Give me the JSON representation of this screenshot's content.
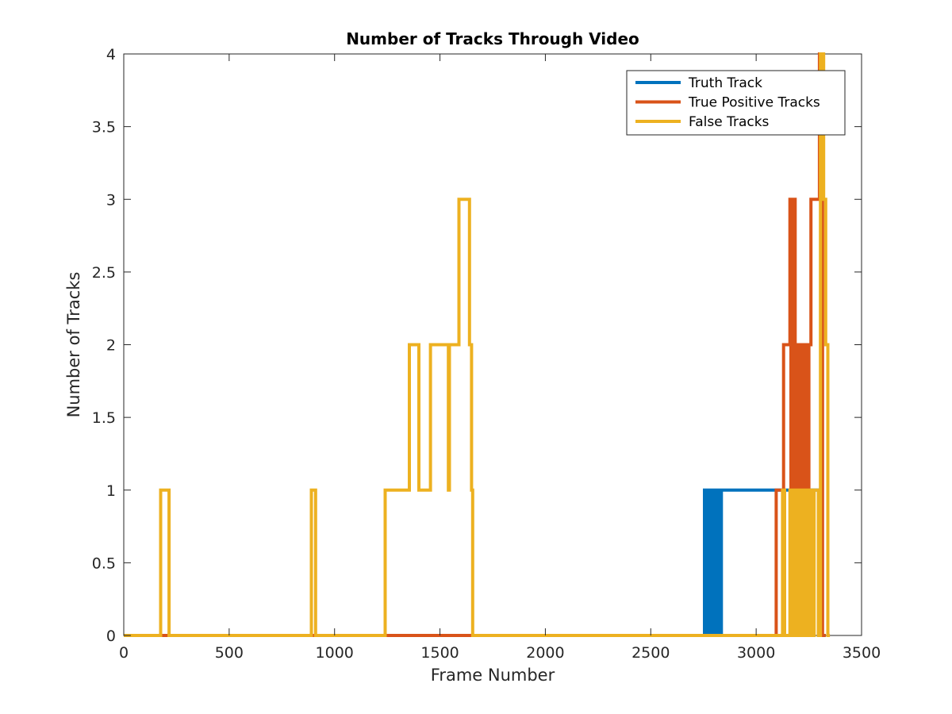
{
  "chart_data": {
    "type": "line",
    "title": "Number of Tracks Through Video",
    "xlabel": "Frame Number",
    "ylabel": "Number of Tracks",
    "xlim": [
      0,
      3500
    ],
    "ylim": [
      0,
      4
    ],
    "xticks": [
      0,
      500,
      1000,
      1500,
      2000,
      2500,
      3000,
      3500
    ],
    "xtick_labels": [
      "0",
      "500",
      "1000",
      "1500",
      "2000",
      "2500",
      "3000",
      "3500"
    ],
    "yticks": [
      0,
      0.5,
      1,
      1.5,
      2,
      2.5,
      3,
      3.5,
      4
    ],
    "ytick_labels": [
      "0",
      "0.5",
      "1",
      "1.5",
      "2",
      "2.5",
      "3",
      "3.5",
      "4"
    ],
    "grid": false,
    "legend_position": "top-right",
    "series": [
      {
        "name": "Truth Track",
        "color": "#0072BD",
        "x": [
          0,
          2755,
          2755,
          2760,
          2760,
          2765,
          2765,
          2770,
          2770,
          2775,
          2775,
          2780,
          2780,
          2785,
          2785,
          2790,
          2790,
          2795,
          2795,
          2800,
          2800,
          2805,
          2805,
          2810,
          2810,
          2815,
          2815,
          2820,
          2820,
          2825,
          2825,
          2830,
          2830,
          2835,
          2835,
          2840,
          2840,
          3300,
          3300,
          3330
        ],
        "y": [
          0,
          0,
          1,
          1,
          0,
          0,
          1,
          1,
          0,
          0,
          1,
          1,
          0,
          0,
          1,
          1,
          0,
          0,
          1,
          1,
          0,
          0,
          1,
          1,
          0,
          0,
          1,
          1,
          0,
          0,
          1,
          1,
          0,
          0,
          1,
          1,
          1,
          1,
          0,
          0
        ]
      },
      {
        "name": "True Positive Tracks",
        "color": "#D95319",
        "x": [
          0,
          3095,
          3095,
          3130,
          3130,
          3160,
          3160,
          3165,
          3165,
          3170,
          3170,
          3175,
          3175,
          3180,
          3180,
          3185,
          3185,
          3190,
          3190,
          3200,
          3200,
          3215,
          3215,
          3220,
          3220,
          3225,
          3225,
          3230,
          3230,
          3235,
          3235,
          3240,
          3240,
          3250,
          3250,
          3260,
          3260,
          3300,
          3300,
          3315,
          3315,
          3330
        ],
        "y": [
          0,
          0,
          1,
          1,
          2,
          2,
          3,
          3,
          1,
          1,
          3,
          3,
          1,
          1,
          3,
          3,
          1,
          1,
          2,
          2,
          0,
          0,
          2,
          2,
          0,
          0,
          2,
          2,
          0,
          0,
          2,
          2,
          0,
          0,
          2,
          2,
          3,
          3,
          4,
          4,
          0,
          0
        ]
      },
      {
        "name": "False Tracks",
        "color": "#EDB120",
        "x": [
          0,
          175,
          175,
          215,
          215,
          890,
          890,
          910,
          910,
          1240,
          1240,
          1355,
          1355,
          1400,
          1400,
          1455,
          1455,
          1540,
          1540,
          1545,
          1545,
          1590,
          1590,
          1640,
          1640,
          1650,
          1650,
          1655,
          1655,
          3125,
          3125,
          3135,
          3135,
          3160,
          3160,
          3170,
          3170,
          3175,
          3175,
          3185,
          3185,
          3190,
          3190,
          3205,
          3205,
          3215,
          3215,
          3225,
          3225,
          3235,
          3235,
          3245,
          3245,
          3255,
          3255,
          3265,
          3265,
          3275,
          3275,
          3295,
          3295,
          3305,
          3305,
          3320,
          3320,
          3330,
          3330,
          3340,
          3340,
          3350
        ],
        "y": [
          0,
          0,
          1,
          1,
          0,
          0,
          1,
          1,
          0,
          0,
          1,
          1,
          2,
          2,
          1,
          1,
          2,
          2,
          1,
          1,
          2,
          2,
          3,
          3,
          2,
          2,
          1,
          1,
          0,
          0,
          1,
          1,
          0,
          0,
          1,
          1,
          0,
          0,
          1,
          1,
          0,
          0,
          1,
          1,
          0,
          0,
          1,
          1,
          0,
          0,
          1,
          1,
          0,
          0,
          1,
          1,
          0,
          0,
          1,
          1,
          0,
          0,
          4,
          4,
          3,
          3,
          2,
          2,
          0,
          0
        ]
      }
    ]
  }
}
